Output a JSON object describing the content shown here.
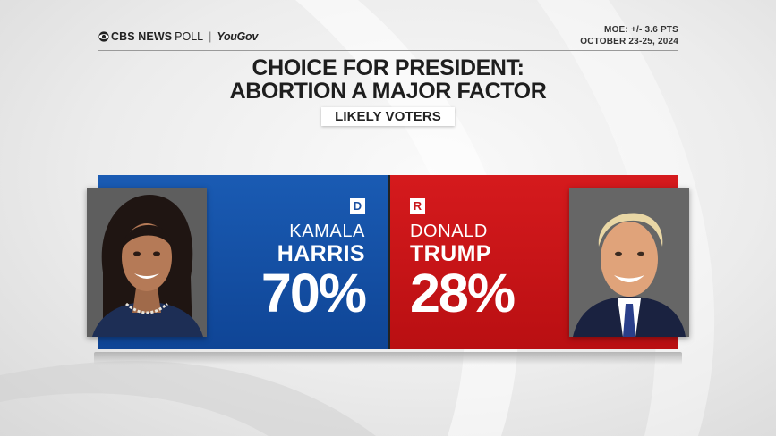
{
  "header": {
    "brand_cbs": "CBS NEWS",
    "brand_poll": "POLL",
    "brand_separator": "|",
    "brand_partner": "YouGov",
    "brand_icon": "cbs-eye-icon",
    "moe": "MOE: +/- 3.6 PTS",
    "dates": "OCTOBER 23-25, 2024"
  },
  "title_line1": "CHOICE FOR PRESIDENT:",
  "title_line2": "ABORTION A MAJOR FACTOR",
  "subtitle": "LIKELY VOTERS",
  "colors": {
    "democrat": "#1a5bb3",
    "republican": "#c8161a"
  },
  "chart_data": {
    "type": "bar",
    "title": "CHOICE FOR PRESIDENT: ABORTION A MAJOR FACTOR",
    "subtitle": "LIKELY VOTERS",
    "categories": [
      "KAMALA HARRIS",
      "DONALD TRUMP"
    ],
    "values": [
      70,
      28
    ],
    "value_labels": [
      "70%",
      "28%"
    ],
    "parties": [
      "D",
      "R"
    ]
  },
  "candidates": [
    {
      "party": "D",
      "first": "KAMALA",
      "last": "HARRIS",
      "pct": "70%",
      "photo_icon": "harris-portrait"
    },
    {
      "party": "R",
      "first": "DONALD",
      "last": "TRUMP",
      "pct": "28%",
      "photo_icon": "trump-portrait"
    }
  ]
}
